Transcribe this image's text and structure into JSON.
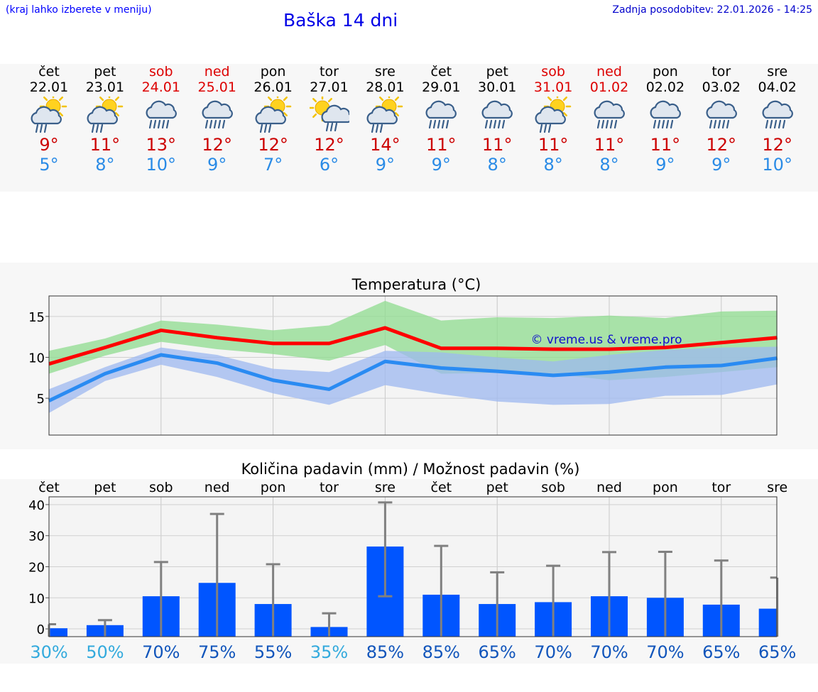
{
  "header": {
    "city_hint": "(kraj lahko izberete v meniju)",
    "title": "Baška 14 dni",
    "updated": "Zadnja posodobitev: 22.01.2026 - 14:25"
  },
  "days": [
    {
      "name": "čet",
      "date": "22.01",
      "weekend": false,
      "icon": "cloud-sun-rain-icon",
      "max": "9°",
      "min": "5°"
    },
    {
      "name": "pet",
      "date": "23.01",
      "weekend": false,
      "icon": "cloud-sun-rain-icon",
      "max": "11°",
      "min": "8°"
    },
    {
      "name": "sob",
      "date": "24.01",
      "weekend": true,
      "icon": "cloud-rain-icon",
      "max": "13°",
      "min": "10°"
    },
    {
      "name": "ned",
      "date": "25.01",
      "weekend": true,
      "icon": "cloud-rain-icon",
      "max": "12°",
      "min": "9°"
    },
    {
      "name": "pon",
      "date": "26.01",
      "weekend": false,
      "icon": "cloud-sun-rain-icon",
      "max": "12°",
      "min": "7°"
    },
    {
      "name": "tor",
      "date": "27.01",
      "weekend": false,
      "icon": "sun-cloud-rain-icon",
      "max": "12°",
      "min": "6°"
    },
    {
      "name": "sre",
      "date": "28.01",
      "weekend": false,
      "icon": "cloud-sun-rain-icon",
      "max": "14°",
      "min": "9°"
    },
    {
      "name": "čet",
      "date": "29.01",
      "weekend": false,
      "icon": "cloud-rain-icon",
      "max": "11°",
      "min": "9°"
    },
    {
      "name": "pet",
      "date": "30.01",
      "weekend": false,
      "icon": "cloud-rain-icon",
      "max": "11°",
      "min": "8°"
    },
    {
      "name": "sob",
      "date": "31.01",
      "weekend": true,
      "icon": "cloud-sun-rain-icon",
      "max": "11°",
      "min": "8°"
    },
    {
      "name": "ned",
      "date": "01.02",
      "weekend": true,
      "icon": "cloud-rain-icon",
      "max": "11°",
      "min": "8°"
    },
    {
      "name": "pon",
      "date": "02.02",
      "weekend": false,
      "icon": "cloud-rain-icon",
      "max": "11°",
      "min": "9°"
    },
    {
      "name": "tor",
      "date": "03.02",
      "weekend": false,
      "icon": "cloud-rain-icon",
      "max": "12°",
      "min": "9°"
    },
    {
      "name": "sre",
      "date": "04.02",
      "weekend": false,
      "icon": "cloud-rain-icon",
      "max": "12°",
      "min": "10°"
    }
  ],
  "chart_data": [
    {
      "type": "line",
      "title": "Temperatura (°C)",
      "watermark": "© vreme.us & vreme.pro",
      "ylim": [
        0.5,
        17.5
      ],
      "yticks": [
        "5",
        "10",
        "15"
      ],
      "x": [
        0,
        1,
        2,
        3,
        4,
        5,
        6,
        7,
        8,
        9,
        10,
        11,
        12,
        13
      ],
      "series": [
        {
          "name": "max",
          "color": "#ff0000",
          "values": [
            9.2,
            11.2,
            13.3,
            12.4,
            11.7,
            11.7,
            13.6,
            11.1,
            11.1,
            11.0,
            11.0,
            11.2,
            11.8,
            12.4
          ],
          "band_low": [
            8.0,
            10.2,
            11.9,
            11.0,
            10.4,
            9.6,
            11.5,
            8.0,
            8.1,
            8.0,
            7.2,
            7.6,
            8.2,
            8.8
          ],
          "band_high": [
            10.8,
            12.3,
            14.5,
            14.0,
            13.3,
            13.9,
            16.9,
            14.5,
            14.9,
            14.8,
            15.1,
            14.8,
            15.6,
            15.7
          ],
          "band_color": "#8fdc8f"
        },
        {
          "name": "min",
          "color": "#2a8bf2",
          "values": [
            4.7,
            8.0,
            10.3,
            9.3,
            7.2,
            6.1,
            9.5,
            8.7,
            8.3,
            7.8,
            8.2,
            8.8,
            9.0,
            9.9
          ],
          "band_low": [
            3.2,
            7.1,
            9.1,
            7.6,
            5.6,
            4.2,
            6.6,
            5.5,
            4.6,
            4.2,
            4.3,
            5.3,
            5.4,
            6.7
          ],
          "band_high": [
            6.1,
            8.8,
            11.2,
            10.3,
            8.6,
            8.2,
            10.8,
            10.6,
            10.0,
            9.5,
            10.3,
            10.9,
            11.2,
            11.3
          ],
          "band_color": "#9db8f0"
        }
      ]
    },
    {
      "type": "bar",
      "title": "Količina padavin (mm) / Možnost padavin (%)",
      "categories": [
        "čet",
        "pet",
        "sob",
        "ned",
        "pon",
        "tor",
        "sre",
        "čet",
        "pet",
        "sob",
        "ned",
        "pon",
        "tor",
        "sre"
      ],
      "values": [
        0.2,
        1.2,
        10.5,
        14.8,
        8.0,
        0.6,
        26.5,
        11.0,
        8.0,
        8.6,
        10.5,
        10.0,
        7.8,
        6.5
      ],
      "err_low": [
        0,
        0,
        0,
        0,
        0,
        0,
        10.5,
        0,
        0,
        0,
        0,
        0,
        0,
        0
      ],
      "err_high": [
        1.5,
        2.8,
        21.5,
        37.0,
        20.8,
        5.0,
        40.7,
        26.7,
        18.2,
        20.3,
        24.7,
        24.8,
        22.0,
        16.5
      ],
      "ylim": [
        -2.5,
        42.5
      ],
      "yticks": [
        "0",
        "10",
        "20",
        "30",
        "40"
      ],
      "probability": [
        "30%",
        "50%",
        "70%",
        "75%",
        "55%",
        "35%",
        "85%",
        "85%",
        "65%",
        "70%",
        "70%",
        "70%",
        "65%",
        "65%"
      ],
      "probability_colors": [
        "#33aadd",
        "#33aadd",
        "#1155bb",
        "#1155bb",
        "#1155bb",
        "#33aadd",
        "#1155bb",
        "#1155bb",
        "#1155bb",
        "#1155bb",
        "#1155bb",
        "#1155bb",
        "#1155bb",
        "#1155bb"
      ],
      "bar_color": "#0055ff",
      "err_color": "#808080"
    }
  ]
}
